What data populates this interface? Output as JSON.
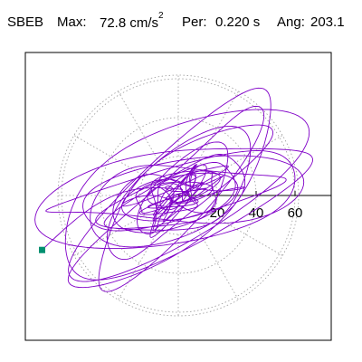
{
  "header": {
    "station": "SBEB",
    "max_label": "Max:",
    "max_value": "72.8 cm/s",
    "max_exponent": "2",
    "period_label": "Per:",
    "period_value": "0.220 s",
    "angle_label": "Ang:",
    "angle_value": "203.1"
  },
  "chart_data": {
    "type": "polar-orbit",
    "axis_ticks": [
      "20",
      "40",
      "60"
    ],
    "rings": [
      20,
      40,
      60
    ],
    "spokes_deg": [
      0,
      30,
      60,
      90,
      120,
      150,
      180,
      210,
      240,
      270,
      300,
      330
    ],
    "grid": "dotted",
    "trace_color": "#8000c8",
    "end_marker_color": "#009070",
    "end_point": [
      -70,
      -28
    ]
  }
}
